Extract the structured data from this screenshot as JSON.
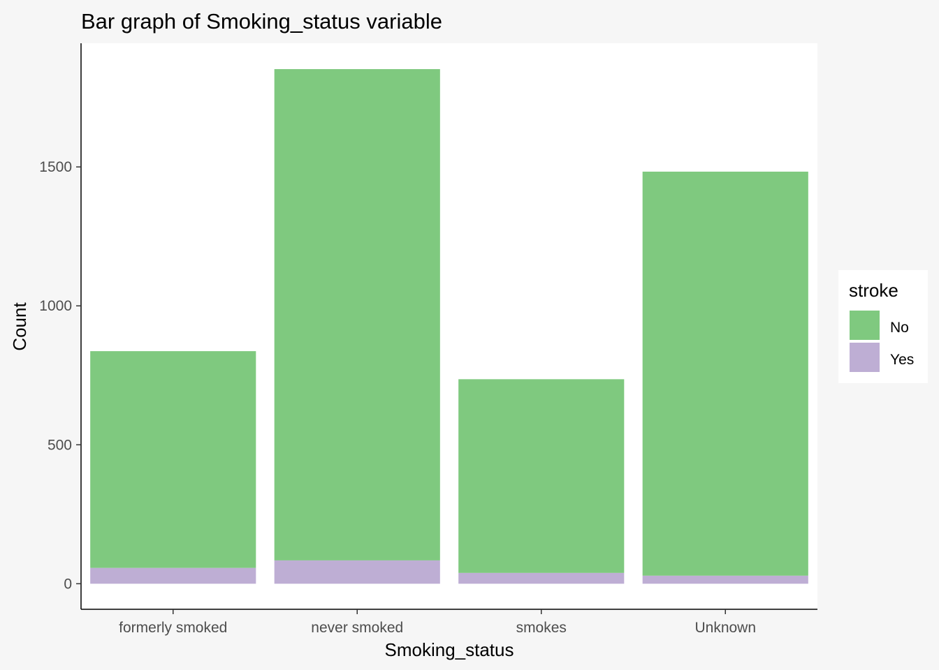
{
  "chart_data": {
    "type": "bar",
    "stacked": true,
    "title": "Bar graph of Smoking_status variable",
    "xlabel": "Smoking_status",
    "ylabel": "Count",
    "categories": [
      "formerly smoked",
      "never smoked",
      "smokes",
      "Unknown"
    ],
    "series": [
      {
        "name": "Yes",
        "color": "#beaed4",
        "values": [
          57,
          84,
          39,
          29
        ]
      },
      {
        "name": "No",
        "color": "#7fc97f",
        "values": [
          780,
          1768,
          697,
          1454
        ]
      }
    ],
    "y_ticks": [
      0,
      500,
      1000,
      1500
    ],
    "ylim": [
      -92,
      1945
    ],
    "grid": false,
    "legend": {
      "title": "stroke",
      "position": "right",
      "entries": [
        {
          "label": "No",
          "color": "#7fc97f"
        },
        {
          "label": "Yes",
          "color": "#beaed4"
        }
      ]
    }
  }
}
